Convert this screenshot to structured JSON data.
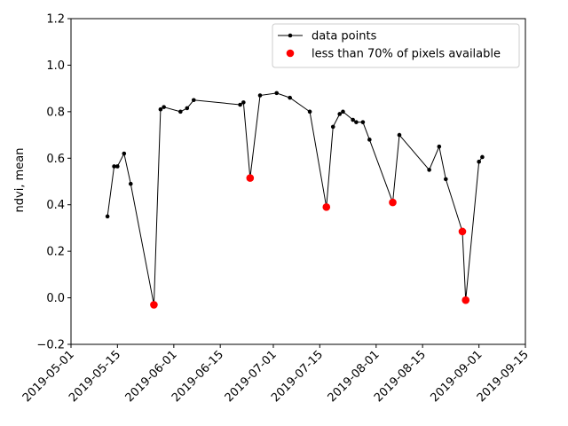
{
  "chart_data": {
    "type": "line",
    "ylabel": "ndvi, mean",
    "xlabel": "",
    "ylim": [
      -0.2,
      1.2
    ],
    "yticks": [
      "−0.2",
      "0.0",
      "0.2",
      "0.4",
      "0.6",
      "0.8",
      "1.0",
      "1.2"
    ],
    "yticks_values": [
      -0.2,
      0.0,
      0.2,
      0.4,
      0.6,
      0.8,
      1.0,
      1.2
    ],
    "xlim": [
      "2019-05-01",
      "2019-09-15"
    ],
    "xticks": [
      "2019-05-01",
      "2019-05-15",
      "2019-06-01",
      "2019-06-15",
      "2019-07-01",
      "2019-07-15",
      "2019-08-01",
      "2019-08-15",
      "2019-09-01",
      "2019-09-15"
    ],
    "legend_position": "top-right",
    "series": [
      {
        "name": "data points",
        "color": "#000000",
        "marker": "dot",
        "points": [
          [
            "2019-05-12",
            0.35
          ],
          [
            "2019-05-14",
            0.565
          ],
          [
            "2019-05-15",
            0.565
          ],
          [
            "2019-05-17",
            0.62
          ],
          [
            "2019-05-19",
            0.49
          ],
          [
            "2019-05-26",
            -0.03
          ],
          [
            "2019-05-28",
            0.81
          ],
          [
            "2019-05-29",
            0.82
          ],
          [
            "2019-06-03",
            0.8
          ],
          [
            "2019-06-05",
            0.815
          ],
          [
            "2019-06-07",
            0.85
          ],
          [
            "2019-06-21",
            0.83
          ],
          [
            "2019-06-22",
            0.84
          ],
          [
            "2019-06-24",
            0.515
          ],
          [
            "2019-06-27",
            0.87
          ],
          [
            "2019-07-02",
            0.88
          ],
          [
            "2019-07-06",
            0.86
          ],
          [
            "2019-07-12",
            0.8
          ],
          [
            "2019-07-17",
            0.39
          ],
          [
            "2019-07-19",
            0.735
          ],
          [
            "2019-07-21",
            0.79
          ],
          [
            "2019-07-22",
            0.8
          ],
          [
            "2019-07-25",
            0.765
          ],
          [
            "2019-07-26",
            0.755
          ],
          [
            "2019-07-28",
            0.755
          ],
          [
            "2019-07-30",
            0.68
          ],
          [
            "2019-08-06",
            0.41
          ],
          [
            "2019-08-08",
            0.7
          ],
          [
            "2019-08-17",
            0.55
          ],
          [
            "2019-08-20",
            0.65
          ],
          [
            "2019-08-22",
            0.51
          ],
          [
            "2019-08-27",
            0.285
          ],
          [
            "2019-08-28",
            -0.01
          ],
          [
            "2019-09-01",
            0.585
          ],
          [
            "2019-09-02",
            0.605
          ]
        ]
      },
      {
        "name": "less than 70% of pixels available",
        "color": "#ff0000",
        "marker": "dot",
        "points": [
          [
            "2019-05-26",
            -0.03
          ],
          [
            "2019-06-24",
            0.515
          ],
          [
            "2019-07-17",
            0.39
          ],
          [
            "2019-08-06",
            0.41
          ],
          [
            "2019-08-27",
            0.285
          ],
          [
            "2019-08-28",
            -0.01
          ]
        ]
      }
    ]
  }
}
